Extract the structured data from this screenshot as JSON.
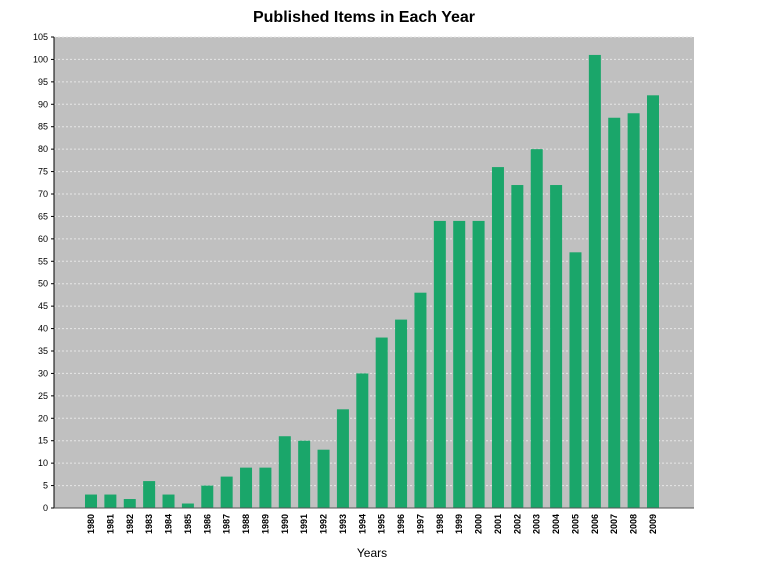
{
  "chart_data": {
    "type": "bar",
    "title": "Published Items in Each Year",
    "xlabel": "Years",
    "ylabel": "",
    "ylim": [
      0,
      105
    ],
    "yticks": [
      0,
      5,
      10,
      15,
      20,
      25,
      30,
      35,
      40,
      45,
      50,
      55,
      60,
      65,
      70,
      75,
      80,
      85,
      90,
      95,
      100,
      105
    ],
    "grid": true,
    "legend": "none",
    "categories": [
      "1980",
      "1981",
      "1982",
      "1983",
      "1984",
      "1985",
      "1986",
      "1987",
      "1988",
      "1989",
      "1990",
      "1991",
      "1992",
      "1993",
      "1994",
      "1995",
      "1996",
      "1997",
      "1998",
      "1999",
      "2000",
      "2001",
      "2002",
      "2003",
      "2004",
      "2005",
      "2006",
      "2007",
      "2008",
      "2009"
    ],
    "values": [
      3,
      3,
      2,
      6,
      3,
      1,
      5,
      7,
      9,
      9,
      16,
      15,
      13,
      22,
      30,
      38,
      42,
      48,
      64,
      64,
      64,
      76,
      72,
      80,
      72,
      57,
      101,
      87,
      88,
      92
    ],
    "colors": {
      "bar": "#1aa66a",
      "plot_background": "#c0c0c0",
      "gridline": "#e6e6e6"
    }
  }
}
